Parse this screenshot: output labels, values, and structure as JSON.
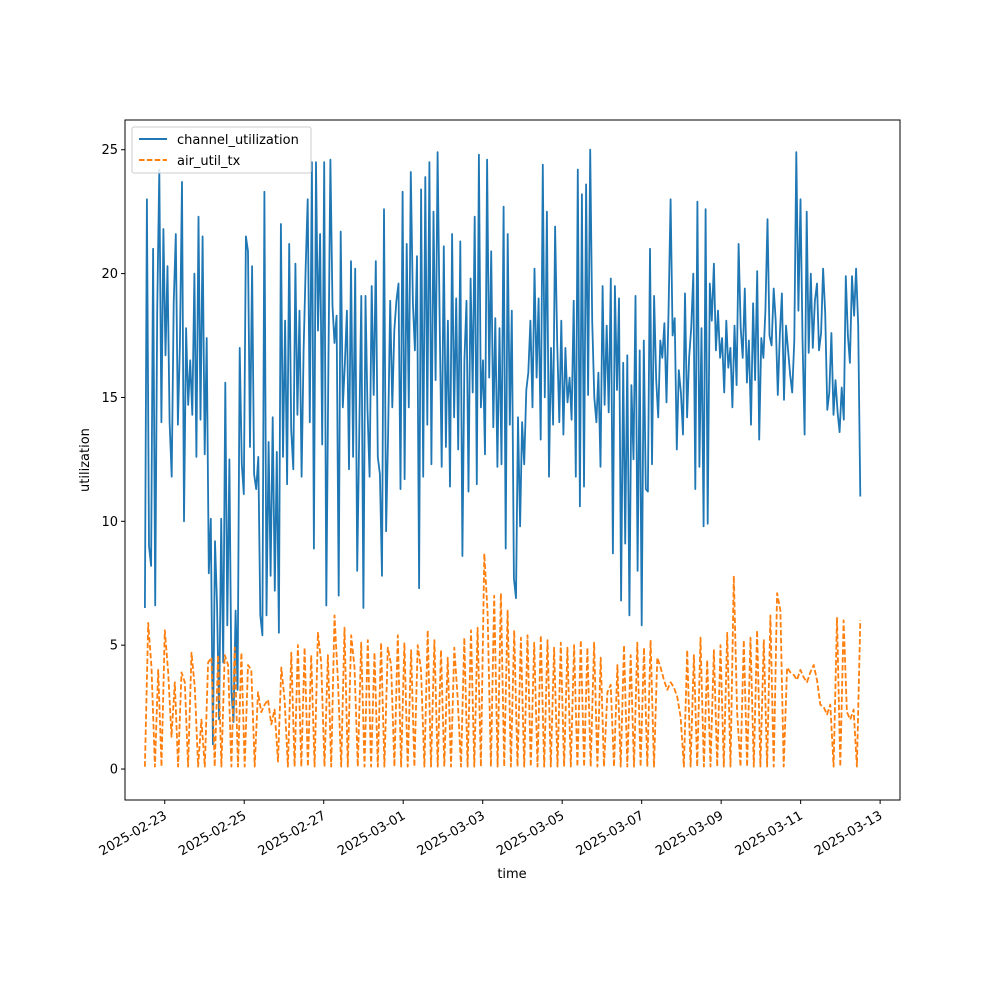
{
  "colors": {
    "channel_utilization": "#1f77b4",
    "air_util_tx": "#ff7f0e"
  },
  "chart_data": {
    "type": "line",
    "title": "",
    "xlabel": "time",
    "ylabel": "utilization",
    "xlim": [
      "2025-02-22T00:00",
      "2025-03-13T12:00"
    ],
    "ylim": [
      -1.25,
      26.2
    ],
    "x_ticks": [
      "2025-02-23",
      "2025-02-25",
      "2025-02-27",
      "2025-03-01",
      "2025-03-03",
      "2025-03-05",
      "2025-03-07",
      "2025-03-09",
      "2025-03-11",
      "2025-03-13"
    ],
    "y_ticks": [
      0,
      5,
      10,
      15,
      20,
      25
    ],
    "grid": false,
    "legend": "top-left",
    "x_start": "2025-02-22T12:00",
    "x_end": "2025-03-12T12:00",
    "series": [
      {
        "name": "channel_utilization",
        "style": "solid",
        "values": [
          6.5,
          23.0,
          9.0,
          8.2,
          21.0,
          6.6,
          18.5,
          24.2,
          14.0,
          21.8,
          16.7,
          20.3,
          14.0,
          11.8,
          18.8,
          21.6,
          13.9,
          17.1,
          23.7,
          10.0,
          17.8,
          14.7,
          16.5,
          14.3,
          20.0,
          12.6,
          22.3,
          14.1,
          21.5,
          12.7,
          17.4,
          7.9,
          10.1,
          1.0,
          9.2,
          6.7,
          2.0,
          10.1,
          4.3,
          15.6,
          5.8,
          12.5,
          3.1,
          1.9,
          6.4,
          3.2,
          17.0,
          12.3,
          11.1,
          21.5,
          20.9,
          13.0,
          20.3,
          11.9,
          11.3,
          12.6,
          6.2,
          5.4,
          23.3,
          6.2,
          13.2,
          7.8,
          14.2,
          7.2,
          12.8,
          5.5,
          22.0,
          12.6,
          18.1,
          11.5,
          21.2,
          13.7,
          12.1,
          20.4,
          14.3,
          18.5,
          11.8,
          16.9,
          20.3,
          23.0,
          14.0,
          24.5,
          8.9,
          24.5,
          17.7,
          21.6,
          13.1,
          24.5,
          6.6,
          16.3,
          24.6,
          18.7,
          17.2,
          18.3,
          7.0,
          21.7,
          14.6,
          16.3,
          18.5,
          12.1,
          20.5,
          12.6,
          20.2,
          8.0,
          13.7,
          19.1,
          6.5,
          19.1,
          14.5,
          11.8,
          19.5,
          15.1,
          20.5,
          12.6,
          11.9,
          7.8,
          22.6,
          9.6,
          13.5,
          18.9,
          14.6,
          17.7,
          18.9,
          19.6,
          11.3,
          23.3,
          11.7,
          21.2,
          14.6,
          24.1,
          18.8,
          16.9,
          20.7,
          7.3,
          23.4,
          11.8,
          23.9,
          13.9,
          24.5,
          12.3,
          22.5,
          15.7,
          24.9,
          18.0,
          12.2,
          21.1,
          13.0,
          18.1,
          11.4,
          21.6,
          14.2,
          19.0,
          12.9,
          21.3,
          8.6,
          16.5,
          18.9,
          11.2,
          19.8,
          15.2,
          22.3,
          11.5,
          24.8,
          14.6,
          16.5,
          12.7,
          24.6,
          15.8,
          20.9,
          13.8,
          18.2,
          12.2,
          17.8,
          12.3,
          22.7,
          8.9,
          21.6,
          13.9,
          18.5,
          7.7,
          6.9,
          14.2,
          9.8,
          14.0,
          12.3,
          15.3,
          16.0,
          18.1,
          14.6,
          20.2,
          15.8,
          19.0,
          13.3,
          24.4,
          15.0,
          22.5,
          11.8,
          17.0,
          13.9,
          21.9,
          17.2,
          14.0,
          18.1,
          13.5,
          17.0,
          14.8,
          15.8,
          14.1,
          18.9,
          11.8,
          24.2,
          10.6,
          23.2,
          11.4,
          23.6,
          15.1,
          25.0,
          18.1,
          15.0,
          14.0,
          16.0,
          12.2,
          19.5,
          14.7,
          17.9,
          14.4,
          19.8,
          8.7,
          19.5,
          15.3,
          19.0,
          6.8,
          16.4,
          9.1,
          16.7,
          6.2,
          15.5,
          12.5,
          19.1,
          8.0,
          16.9,
          5.8,
          17.3,
          11.3,
          11.2,
          21.0,
          12.3,
          19.1,
          15.7,
          14.2,
          17.3,
          16.6,
          18.0,
          14.8,
          18.4,
          23.0,
          17.5,
          18.2,
          12.9,
          16.1,
          15.2,
          13.5,
          19.2,
          14.2,
          16.6,
          17.8,
          20.0,
          11.3,
          22.9,
          12.2,
          17.8,
          9.8,
          22.6,
          9.9,
          19.6,
          18.1,
          20.4,
          16.9,
          18.5,
          16.6,
          17.4,
          15.2,
          18.1,
          16.2,
          17.0,
          14.6,
          17.9,
          15.5,
          21.2,
          17.8,
          16.6,
          19.4,
          15.6,
          17.3,
          13.9,
          18.8,
          15.7,
          20.1,
          13.3,
          17.4,
          16.6,
          18.5,
          22.2,
          17.5,
          17.1,
          19.4,
          18.1,
          15.1,
          17.6,
          19.2,
          14.9,
          17.9,
          16.9,
          15.9,
          15.2,
          17.3,
          24.9,
          18.5,
          23.0,
          17.4,
          13.5,
          22.5,
          16.8,
          20.0,
          17.0,
          18.9,
          19.6,
          16.9,
          17.6,
          20.2,
          18.4,
          14.5,
          15.2,
          17.6,
          14.3,
          15.7,
          14.4,
          13.6,
          15.4,
          14.1,
          19.9,
          17.5,
          16.4,
          19.9,
          18.3,
          20.2,
          17.9,
          11.0
        ]
      },
      {
        "name": "air_util_tx",
        "style": "dashed",
        "values": [
          0.1,
          5.9,
          4.1,
          0.1,
          4.0,
          0.1,
          5.6,
          3.9,
          1.3,
          3.5,
          0.1,
          3.9,
          3.5,
          0.1,
          4.7,
          3.3,
          0.1,
          2.0,
          0.1,
          4.3,
          4.5,
          0.1,
          4.6,
          0.1,
          4.6,
          4.2,
          0.1,
          4.9,
          0.1,
          4.7,
          0.1,
          4.2,
          4.0,
          0.1,
          3.1,
          2.3,
          2.6,
          2.8,
          1.8,
          2.4,
          0.3,
          4.1,
          2.8,
          0.1,
          4.7,
          0.1,
          5.0,
          0.1,
          4.9,
          0.1,
          4.6,
          0.1,
          5.5,
          4.3,
          0.1,
          4.6,
          0.1,
          6.2,
          3.6,
          0.1,
          5.7,
          0.1,
          5.4,
          4.1,
          0.1,
          5.1,
          0.1,
          5.2,
          0.1,
          4.7,
          0.1,
          5.1,
          0.1,
          4.9,
          4.2,
          0.1,
          5.4,
          0.1,
          5.1,
          0.1,
          4.8,
          0.1,
          5.0,
          4.0,
          0.1,
          5.6,
          0.1,
          5.2,
          0.1,
          4.8,
          0.1,
          4.5,
          0.1,
          4.9,
          2.9,
          0.1,
          5.3,
          0.1,
          5.6,
          0.1,
          5.7,
          0.1,
          8.7,
          6.3,
          0.1,
          7.0,
          0.1,
          7.1,
          0.1,
          6.4,
          0.1,
          5.6,
          0.1,
          5.3,
          0.1,
          5.4,
          0.1,
          5.1,
          0.1,
          5.4,
          0.1,
          5.2,
          0.1,
          4.9,
          0.1,
          5.1,
          0.1,
          4.9,
          0.1,
          5.0,
          0.1,
          5.2,
          0.1,
          4.9,
          0.1,
          5.1,
          0.1,
          4.5,
          0.1,
          3.1,
          3.4,
          0.1,
          4.2,
          0.1,
          5.0,
          0.1,
          4.6,
          0.1,
          5.1,
          0.1,
          4.9,
          0.1,
          5.2,
          0.1,
          4.5,
          4.1,
          3.6,
          3.2,
          3.5,
          3.3,
          2.9,
          2.1,
          0.1,
          4.8,
          0.1,
          4.6,
          0.1,
          5.3,
          0.1,
          4.4,
          0.1,
          4.8,
          0.1,
          5.0,
          0.1,
          5.5,
          0.1,
          7.8,
          2.3,
          0.1,
          5.2,
          0.1,
          5.3,
          0.1,
          5.6,
          0.1,
          5.2,
          0.1,
          6.2,
          0.1,
          7.1,
          6.4,
          0.1,
          4.1,
          3.9,
          3.8,
          3.6,
          4.0,
          3.7,
          3.5,
          3.9,
          4.2,
          3.6,
          2.6,
          2.5,
          2.2,
          2.6,
          0.1,
          6.1,
          0.1,
          6.0,
          2.3,
          2.0,
          2.4,
          0.1,
          6.0
        ]
      }
    ]
  }
}
